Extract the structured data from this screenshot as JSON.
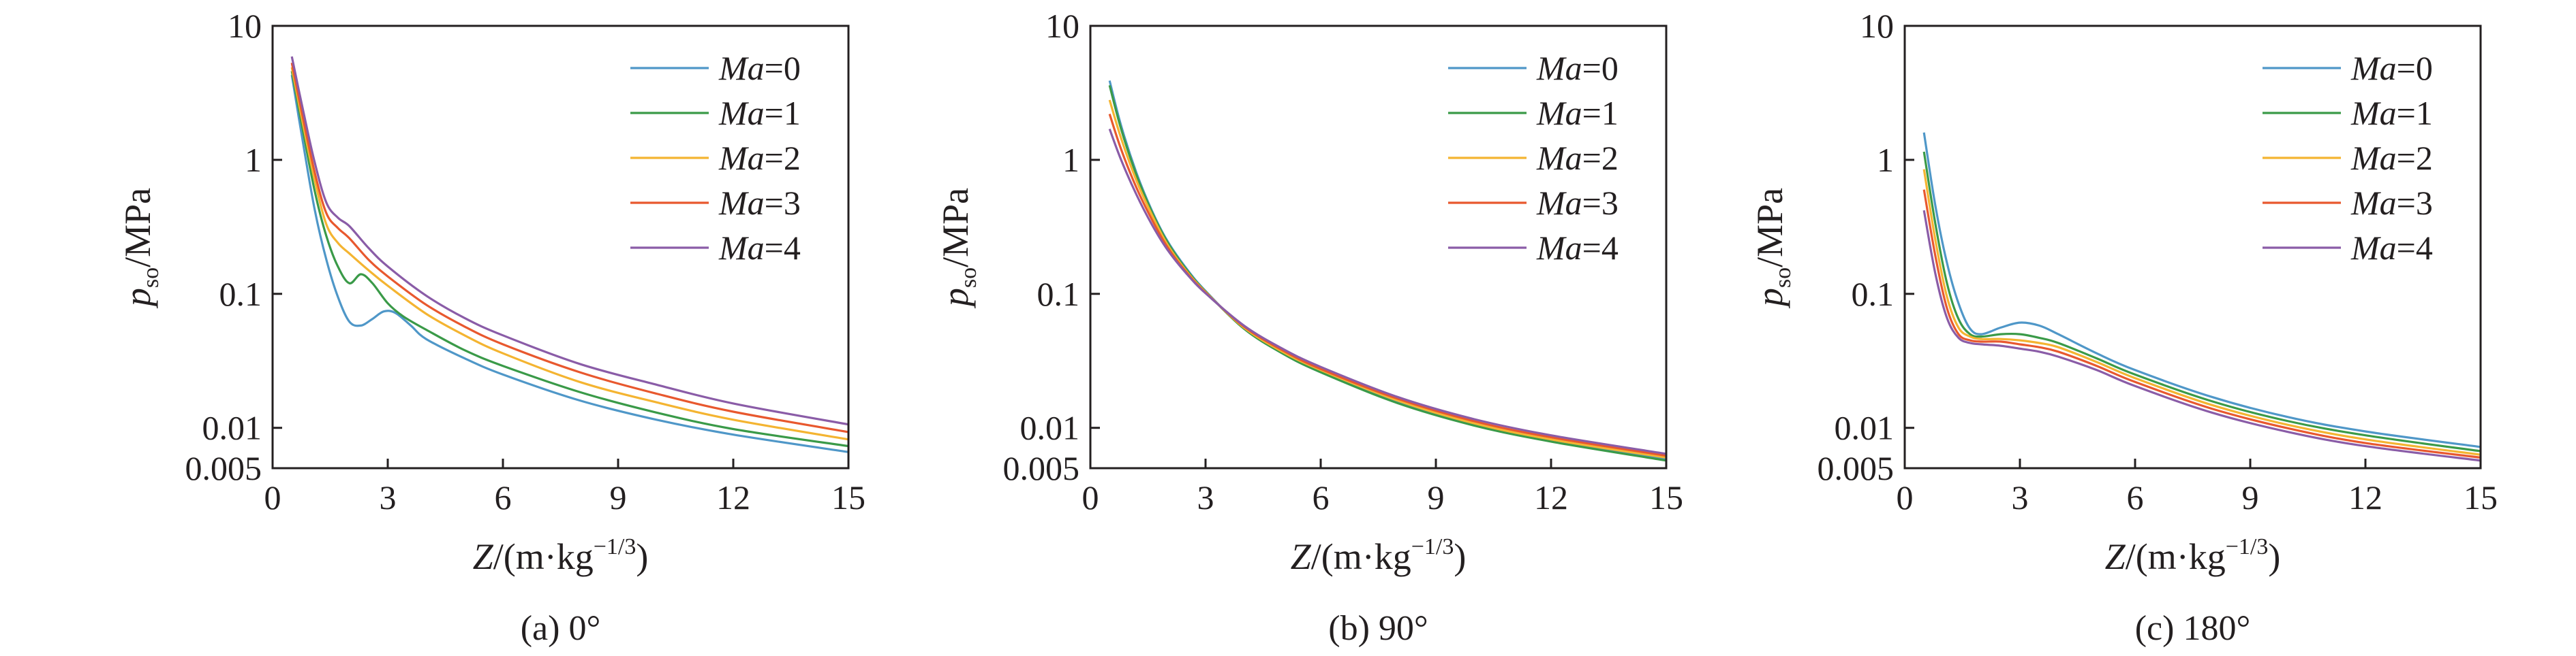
{
  "figure": {
    "panels": [
      {
        "caption": "(a) 0°"
      },
      {
        "caption": "(b) 90°"
      },
      {
        "caption": "(c) 180°"
      }
    ]
  },
  "chart_data": [
    {
      "type": "line",
      "caption": "(a) 0°",
      "ylabel": {
        "var": "p",
        "sub": "so",
        "unit": "/MPa"
      },
      "xlabel": {
        "var": "Z",
        "unit": "/(m·kg",
        "sup": "−1/3",
        "close": ")"
      },
      "xlim": [
        0,
        15
      ],
      "ylim": [
        0.005,
        10
      ],
      "yscale": "log",
      "xticks": [
        0,
        3,
        6,
        9,
        12,
        15
      ],
      "yticks": [
        {
          "v": 10,
          "label": "10"
        },
        {
          "v": 1,
          "label": "1"
        },
        {
          "v": 0.1,
          "label": "0.1"
        },
        {
          "v": 0.01,
          "label": "0.01"
        },
        {
          "v": 0.005,
          "label": "0.005"
        }
      ],
      "grid": false,
      "legend_position": "top-right",
      "series": [
        {
          "name": "Ma=0",
          "label_var": "Ma",
          "label_val": "=0",
          "color": "#4f97c8",
          "x": [
            0.5,
            0.8,
            1.1,
            1.4,
            1.7,
            2.0,
            2.3,
            2.6,
            2.9,
            3.2,
            3.6,
            4.0,
            5.0,
            6.0,
            8.0,
            10.0,
            12.0,
            15.0
          ],
          "y": [
            4.3,
            1.3,
            0.42,
            0.18,
            0.095,
            0.062,
            0.058,
            0.065,
            0.074,
            0.072,
            0.058,
            0.046,
            0.033,
            0.025,
            0.016,
            0.0115,
            0.0089,
            0.0066
          ]
        },
        {
          "name": "Ma=1",
          "label_var": "Ma",
          "label_val": "=1",
          "color": "#3a9a48",
          "x": [
            0.5,
            0.8,
            1.1,
            1.4,
            1.7,
            2.0,
            2.3,
            2.6,
            3.0,
            3.4,
            4.0,
            5.0,
            6.0,
            8.0,
            10.0,
            12.0,
            15.0
          ],
          "y": [
            4.6,
            1.6,
            0.58,
            0.27,
            0.16,
            0.12,
            0.14,
            0.12,
            0.085,
            0.068,
            0.054,
            0.038,
            0.029,
            0.0185,
            0.013,
            0.0098,
            0.0073
          ]
        },
        {
          "name": "Ma=2",
          "label_var": "Ma",
          "label_val": "=2",
          "color": "#f4b431",
          "x": [
            0.5,
            0.8,
            1.1,
            1.4,
            1.7,
            2.0,
            2.5,
            3.0,
            4.0,
            5.0,
            6.0,
            8.0,
            10.0,
            12.0,
            15.0
          ],
          "y": [
            4.9,
            1.8,
            0.7,
            0.33,
            0.24,
            0.2,
            0.15,
            0.115,
            0.071,
            0.049,
            0.036,
            0.022,
            0.0155,
            0.0115,
            0.0082
          ]
        },
        {
          "name": "Ma=3",
          "label_var": "Ma",
          "label_val": "=3",
          "color": "#e8582e",
          "x": [
            0.5,
            0.8,
            1.1,
            1.4,
            1.7,
            2.0,
            2.5,
            3.0,
            4.0,
            5.0,
            6.0,
            8.0,
            10.0,
            12.0,
            15.0
          ],
          "y": [
            5.3,
            2.0,
            0.8,
            0.4,
            0.31,
            0.26,
            0.18,
            0.135,
            0.083,
            0.057,
            0.042,
            0.026,
            0.018,
            0.0132,
            0.0093
          ]
        },
        {
          "name": "Ma=4",
          "label_var": "Ma",
          "label_val": "=4",
          "color": "#8a5ca7",
          "x": [
            0.5,
            0.8,
            1.1,
            1.4,
            1.7,
            2.0,
            2.5,
            3.0,
            4.0,
            5.0,
            6.0,
            8.0,
            10.0,
            12.0,
            15.0
          ],
          "y": [
            5.9,
            2.3,
            0.95,
            0.48,
            0.37,
            0.32,
            0.22,
            0.16,
            0.097,
            0.066,
            0.049,
            0.03,
            0.021,
            0.0152,
            0.0106
          ]
        }
      ]
    },
    {
      "type": "line",
      "caption": "(b) 90°",
      "ylabel": {
        "var": "p",
        "sub": "so",
        "unit": "/MPa"
      },
      "xlabel": {
        "var": "Z",
        "unit": "/(m·kg",
        "sup": "−1/3",
        "close": ")"
      },
      "xlim": [
        0,
        15
      ],
      "ylim": [
        0.005,
        10
      ],
      "yscale": "log",
      "xticks": [
        0,
        3,
        6,
        9,
        12,
        15
      ],
      "yticks": [
        {
          "v": 10,
          "label": "10"
        },
        {
          "v": 1,
          "label": "1"
        },
        {
          "v": 0.1,
          "label": "0.1"
        },
        {
          "v": 0.01,
          "label": "0.01"
        },
        {
          "v": 0.005,
          "label": "0.005"
        }
      ],
      "grid": false,
      "legend_position": "top-right",
      "series": [
        {
          "name": "Ma=0",
          "label_var": "Ma",
          "label_val": "=0",
          "color": "#4f97c8",
          "x": [
            0.5,
            0.8,
            1.2,
            1.6,
            2.0,
            2.5,
            3.0,
            4.0,
            5.0,
            6.0,
            8.0,
            10.0,
            12.0,
            15.0
          ],
          "y": [
            3.9,
            1.8,
            0.8,
            0.42,
            0.25,
            0.155,
            0.105,
            0.055,
            0.036,
            0.026,
            0.0155,
            0.0105,
            0.008,
            0.0058
          ]
        },
        {
          "name": "Ma=1",
          "label_var": "Ma",
          "label_val": "=1",
          "color": "#3a9a48",
          "x": [
            0.5,
            0.8,
            1.2,
            1.6,
            2.0,
            2.5,
            3.0,
            4.0,
            5.0,
            6.0,
            8.0,
            10.0,
            12.0,
            15.0
          ],
          "y": [
            3.6,
            1.7,
            0.77,
            0.41,
            0.245,
            0.152,
            0.104,
            0.055,
            0.036,
            0.026,
            0.0153,
            0.0104,
            0.0079,
            0.0057
          ]
        },
        {
          "name": "Ma=2",
          "label_var": "Ma",
          "label_val": "=2",
          "color": "#f4b431",
          "x": [
            0.5,
            0.8,
            1.2,
            1.6,
            2.0,
            2.5,
            3.0,
            4.0,
            5.0,
            6.0,
            8.0,
            10.0,
            12.0,
            15.0
          ],
          "y": [
            2.8,
            1.45,
            0.7,
            0.39,
            0.235,
            0.148,
            0.103,
            0.056,
            0.037,
            0.027,
            0.016,
            0.0108,
            0.0082,
            0.006
          ]
        },
        {
          "name": "Ma=3",
          "label_var": "Ma",
          "label_val": "=3",
          "color": "#e8582e",
          "x": [
            0.5,
            0.8,
            1.2,
            1.6,
            2.0,
            2.5,
            3.0,
            4.0,
            5.0,
            6.0,
            8.0,
            10.0,
            12.0,
            15.0
          ],
          "y": [
            2.2,
            1.2,
            0.62,
            0.36,
            0.225,
            0.145,
            0.102,
            0.057,
            0.038,
            0.0275,
            0.0165,
            0.0112,
            0.0085,
            0.0062
          ]
        },
        {
          "name": "Ma=4",
          "label_var": "Ma",
          "label_val": "=4",
          "color": "#8a5ca7",
          "x": [
            0.5,
            0.8,
            1.2,
            1.6,
            2.0,
            2.5,
            3.0,
            4.0,
            5.0,
            6.0,
            8.0,
            10.0,
            12.0,
            15.0
          ],
          "y": [
            1.7,
            1.0,
            0.55,
            0.33,
            0.215,
            0.142,
            0.101,
            0.058,
            0.039,
            0.0285,
            0.017,
            0.0116,
            0.0088,
            0.0064
          ]
        }
      ]
    },
    {
      "type": "line",
      "caption": "(c) 180°",
      "ylabel": {
        "var": "p",
        "sub": "so",
        "unit": "/MPa"
      },
      "xlabel": {
        "var": "Z",
        "unit": "/(m·kg",
        "sup": "−1/3",
        "close": ")"
      },
      "xlim": [
        0,
        15
      ],
      "ylim": [
        0.005,
        10
      ],
      "yscale": "log",
      "xticks": [
        0,
        3,
        6,
        9,
        12,
        15
      ],
      "yticks": [
        {
          "v": 10,
          "label": "10"
        },
        {
          "v": 1,
          "label": "1"
        },
        {
          "v": 0.1,
          "label": "0.1"
        },
        {
          "v": 0.01,
          "label": "0.01"
        },
        {
          "v": 0.005,
          "label": "0.005"
        }
      ],
      "grid": false,
      "legend_position": "top-right",
      "series": [
        {
          "name": "Ma=0",
          "label_var": "Ma",
          "label_val": "=0",
          "color": "#4f97c8",
          "x": [
            0.5,
            0.8,
            1.1,
            1.4,
            1.7,
            2.0,
            2.5,
            3.0,
            3.5,
            4.0,
            5.0,
            6.0,
            8.0,
            10.0,
            12.0,
            15.0
          ],
          "y": [
            1.6,
            0.45,
            0.17,
            0.085,
            0.055,
            0.05,
            0.056,
            0.061,
            0.058,
            0.05,
            0.036,
            0.027,
            0.017,
            0.012,
            0.0094,
            0.0072
          ]
        },
        {
          "name": "Ma=1",
          "label_var": "Ma",
          "label_val": "=1",
          "color": "#3a9a48",
          "x": [
            0.5,
            0.8,
            1.1,
            1.4,
            1.7,
            2.0,
            2.5,
            3.0,
            3.5,
            4.0,
            5.0,
            6.0,
            8.0,
            10.0,
            12.0,
            15.0
          ],
          "y": [
            1.15,
            0.33,
            0.12,
            0.065,
            0.05,
            0.048,
            0.05,
            0.05,
            0.047,
            0.043,
            0.033,
            0.025,
            0.0158,
            0.0112,
            0.0088,
            0.0067
          ]
        },
        {
          "name": "Ma=2",
          "label_var": "Ma",
          "label_val": "=2",
          "color": "#f4b431",
          "x": [
            0.5,
            0.8,
            1.1,
            1.4,
            1.7,
            2.0,
            2.5,
            3.0,
            3.5,
            4.0,
            5.0,
            6.0,
            8.0,
            10.0,
            12.0,
            15.0
          ],
          "y": [
            0.85,
            0.25,
            0.095,
            0.056,
            0.048,
            0.046,
            0.046,
            0.045,
            0.043,
            0.04,
            0.031,
            0.0235,
            0.0148,
            0.0105,
            0.0082,
            0.0063
          ]
        },
        {
          "name": "Ma=3",
          "label_var": "Ma",
          "label_val": "=3",
          "color": "#e8582e",
          "x": [
            0.5,
            0.8,
            1.1,
            1.4,
            1.7,
            2.0,
            2.5,
            3.0,
            3.5,
            4.0,
            5.0,
            6.0,
            8.0,
            10.0,
            12.0,
            15.0
          ],
          "y": [
            0.6,
            0.19,
            0.078,
            0.05,
            0.045,
            0.044,
            0.044,
            0.042,
            0.04,
            0.037,
            0.029,
            0.022,
            0.0139,
            0.0099,
            0.0077,
            0.006
          ]
        },
        {
          "name": "Ma=4",
          "label_var": "Ma",
          "label_val": "=4",
          "color": "#8a5ca7",
          "x": [
            0.5,
            0.8,
            1.1,
            1.4,
            1.7,
            2.0,
            2.5,
            3.0,
            3.5,
            4.0,
            5.0,
            6.0,
            8.0,
            10.0,
            12.0,
            15.0
          ],
          "y": [
            0.42,
            0.14,
            0.066,
            0.047,
            0.043,
            0.042,
            0.041,
            0.039,
            0.037,
            0.034,
            0.027,
            0.0205,
            0.013,
            0.0093,
            0.0073,
            0.0057
          ]
        }
      ]
    }
  ]
}
